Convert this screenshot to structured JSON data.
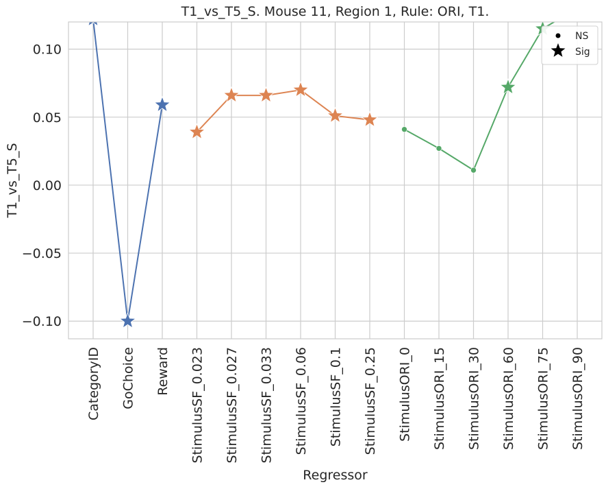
{
  "chart_data": {
    "type": "line",
    "title": "T1_vs_T5_S. Mouse 11, Region 1, Rule: ORI, T1.",
    "xlabel": "Regressor",
    "ylabel": "T1_vs_T5_S",
    "categories": [
      "CategoryID",
      "GoChoice",
      "Reward",
      "StimulusSF_0.023",
      "StimulusSF_0.027",
      "StimulusSF_0.033",
      "StimulusSF_0.06",
      "StimulusSF_0.1",
      "StimulusSF_0.25",
      "StimulusORI_0",
      "StimulusORI_15",
      "StimulusORI_30",
      "StimulusORI_60",
      "StimulusORI_75",
      "StimulusORI_90"
    ],
    "ylim": [
      -0.113,
      0.12
    ],
    "yticks": [
      0.1,
      0.05,
      0.0,
      -0.05,
      -0.1
    ],
    "ytick_labels": [
      "0.10",
      "0.05",
      "0.00",
      "−0.05",
      "−0.10"
    ],
    "grid": true,
    "legend_position": "top-right",
    "legend": [
      {
        "label": "NS",
        "marker": "dot"
      },
      {
        "label": "Sig",
        "marker": "star"
      }
    ],
    "series": [
      {
        "color": "#4c72b0",
        "points": [
          {
            "x": "CategoryID",
            "y": 0.122,
            "sig": true
          },
          {
            "x": "GoChoice",
            "y": -0.1,
            "sig": true
          },
          {
            "x": "Reward",
            "y": 0.059,
            "sig": true
          }
        ]
      },
      {
        "color": "#dd8452",
        "points": [
          {
            "x": "StimulusSF_0.023",
            "y": 0.039,
            "sig": true
          },
          {
            "x": "StimulusSF_0.027",
            "y": 0.066,
            "sig": true
          },
          {
            "x": "StimulusSF_0.033",
            "y": 0.066,
            "sig": true
          },
          {
            "x": "StimulusSF_0.06",
            "y": 0.07,
            "sig": true
          },
          {
            "x": "StimulusSF_0.1",
            "y": 0.051,
            "sig": true
          },
          {
            "x": "StimulusSF_0.25",
            "y": 0.048,
            "sig": true
          }
        ]
      },
      {
        "color": "#55a868",
        "points": [
          {
            "x": "StimulusORI_0",
            "y": 0.041,
            "sig": false
          },
          {
            "x": "StimulusORI_15",
            "y": 0.027,
            "sig": false
          },
          {
            "x": "StimulusORI_30",
            "y": 0.011,
            "sig": false
          },
          {
            "x": "StimulusORI_60",
            "y": 0.072,
            "sig": true
          },
          {
            "x": "StimulusORI_75",
            "y": 0.115,
            "sig": true
          },
          {
            "x": "StimulusORI_90",
            "y": 0.13,
            "sig": true
          }
        ]
      }
    ]
  }
}
